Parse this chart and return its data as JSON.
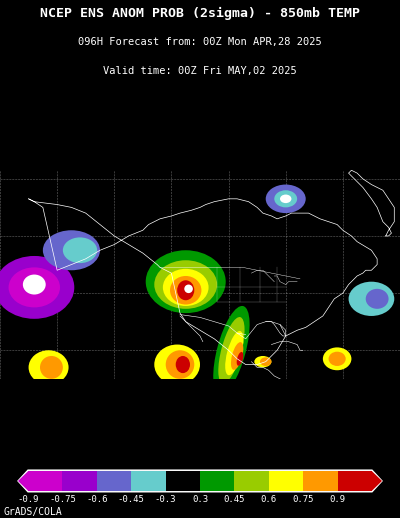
{
  "title_line1": "NCEP ENS ANOM PROB (2sigma) - 850mb TEMP",
  "title_line2": "096H Forecast from: 00Z Mon APR,28 2025",
  "title_line3": "Valid time: 00Z Fri MAY,02 2025",
  "background_color": "#000000",
  "title_color": "#ffffff",
  "colorbar_colors": [
    "#cc00cc",
    "#9900cc",
    "#6666cc",
    "#66cccc",
    "#000000",
    "#009900",
    "#99cc00",
    "#ffff00",
    "#ff9900",
    "#cc0000"
  ],
  "colorbar_labels": [
    "-0.9",
    "-0.75",
    "-0.6",
    "-0.45",
    "-0.3",
    "0.3",
    "0.45",
    "0.6",
    "0.75",
    "0.9"
  ],
  "colorbar_label_color": "#ffffff",
  "footer_text": "GrADS/COLA",
  "footer_color": "#ffffff",
  "figsize": [
    4.0,
    5.18
  ],
  "dpi": 100,
  "map_lon_min": -180,
  "map_lon_max": -40,
  "map_lat_min": 10,
  "map_lat_max": 83
}
